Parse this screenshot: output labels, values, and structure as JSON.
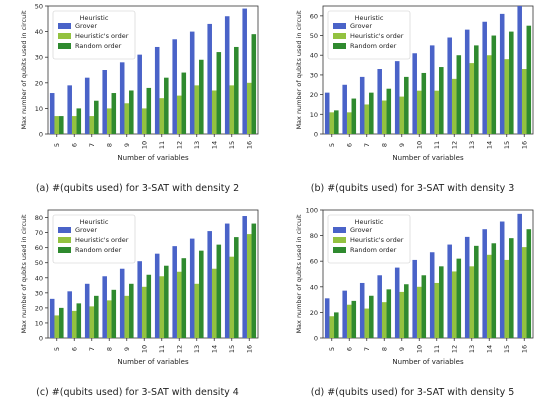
{
  "figure": {
    "captions": [
      "(a) #(qubits used) for 3-SAT with density 2",
      "(b) #(qubits used) for 3-SAT with density 3",
      "(c) #(qubits used) for 3-SAT with density 4",
      "(d) #(qubits used) for 3-SAT with density 5"
    ]
  },
  "colors": {
    "grover": "#4a63c8",
    "heuristic": "#93c240",
    "random": "#2f8a2f"
  },
  "chart_data": [
    {
      "type": "bar",
      "xlabel": "Number of variables",
      "ylabel": "Max number of qubits used in circuit",
      "legend_title": "Heuristic",
      "legend_position": "top-left",
      "categories": [
        "5",
        "6",
        "7",
        "8",
        "9",
        "10",
        "11",
        "12",
        "13",
        "14",
        "15",
        "16"
      ],
      "ylim": [
        0,
        50
      ],
      "yticks": [
        0,
        10,
        20,
        30,
        40,
        50
      ],
      "series": [
        {
          "name": "Grover",
          "values": [
            16,
            19,
            22,
            25,
            28,
            31,
            34,
            37,
            40,
            43,
            46,
            49
          ]
        },
        {
          "name": "Heuristic's order",
          "values": [
            7,
            7,
            7,
            10,
            12,
            10,
            14,
            15,
            19,
            17,
            19,
            20
          ]
        },
        {
          "name": "Random order",
          "values": [
            7,
            10,
            13,
            16,
            17,
            18,
            22,
            24,
            29,
            32,
            34,
            39
          ]
        }
      ]
    },
    {
      "type": "bar",
      "xlabel": "Number of variables",
      "ylabel": "Max number of qubits used in circuit",
      "legend_title": "Heuristic",
      "legend_position": "top-left",
      "categories": [
        "5",
        "6",
        "7",
        "8",
        "9",
        "10",
        "11",
        "12",
        "13",
        "14",
        "15",
        "16"
      ],
      "ylim": [
        0,
        65
      ],
      "yticks": [
        0,
        10,
        20,
        30,
        40,
        50,
        60
      ],
      "series": [
        {
          "name": "Grover",
          "values": [
            21,
            25,
            29,
            33,
            37,
            41,
            45,
            49,
            53,
            57,
            61,
            65
          ]
        },
        {
          "name": "Heuristic's order",
          "values": [
            11,
            11,
            15,
            17,
            19,
            22,
            22,
            28,
            36,
            40,
            38,
            33
          ]
        },
        {
          "name": "Random order",
          "values": [
            12,
            18,
            21,
            23,
            29,
            31,
            34,
            40,
            45,
            50,
            52,
            55
          ]
        }
      ]
    },
    {
      "type": "bar",
      "xlabel": "Number of variables",
      "ylabel": "Max number of qubits used in circuit",
      "legend_title": "Heuristic",
      "legend_position": "top-left",
      "categories": [
        "5",
        "6",
        "7",
        "8",
        "9",
        "10",
        "11",
        "12",
        "13",
        "14",
        "15",
        "16"
      ],
      "ylim": [
        0,
        85
      ],
      "yticks": [
        0,
        10,
        20,
        30,
        40,
        50,
        60,
        70,
        80
      ],
      "series": [
        {
          "name": "Grover",
          "values": [
            26,
            31,
            36,
            41,
            46,
            51,
            56,
            61,
            66,
            71,
            76,
            81
          ]
        },
        {
          "name": "Heuristic's order",
          "values": [
            15,
            18,
            21,
            25,
            28,
            34,
            41,
            44,
            36,
            46,
            54,
            69
          ]
        },
        {
          "name": "Random order",
          "values": [
            20,
            23,
            28,
            32,
            36,
            42,
            48,
            53,
            58,
            62,
            67,
            76
          ]
        }
      ]
    },
    {
      "type": "bar",
      "xlabel": "Number of variables",
      "ylabel": "Max number of qubits used in circuit",
      "legend_title": "Heuristic",
      "legend_position": "top-left",
      "categories": [
        "5",
        "6",
        "7",
        "8",
        "9",
        "10",
        "11",
        "12",
        "13",
        "14",
        "15",
        "16"
      ],
      "ylim": [
        0,
        100
      ],
      "yticks": [
        0,
        20,
        40,
        60,
        80,
        100
      ],
      "series": [
        {
          "name": "Grover",
          "values": [
            31,
            37,
            43,
            49,
            55,
            61,
            67,
            73,
            79,
            85,
            91,
            97
          ]
        },
        {
          "name": "Heuristic's order",
          "values": [
            17,
            26,
            23,
            28,
            36,
            40,
            43,
            52,
            56,
            65,
            61,
            71
          ]
        },
        {
          "name": "Random order",
          "values": [
            20,
            29,
            33,
            38,
            42,
            49,
            56,
            62,
            72,
            74,
            78,
            85
          ]
        }
      ]
    }
  ]
}
